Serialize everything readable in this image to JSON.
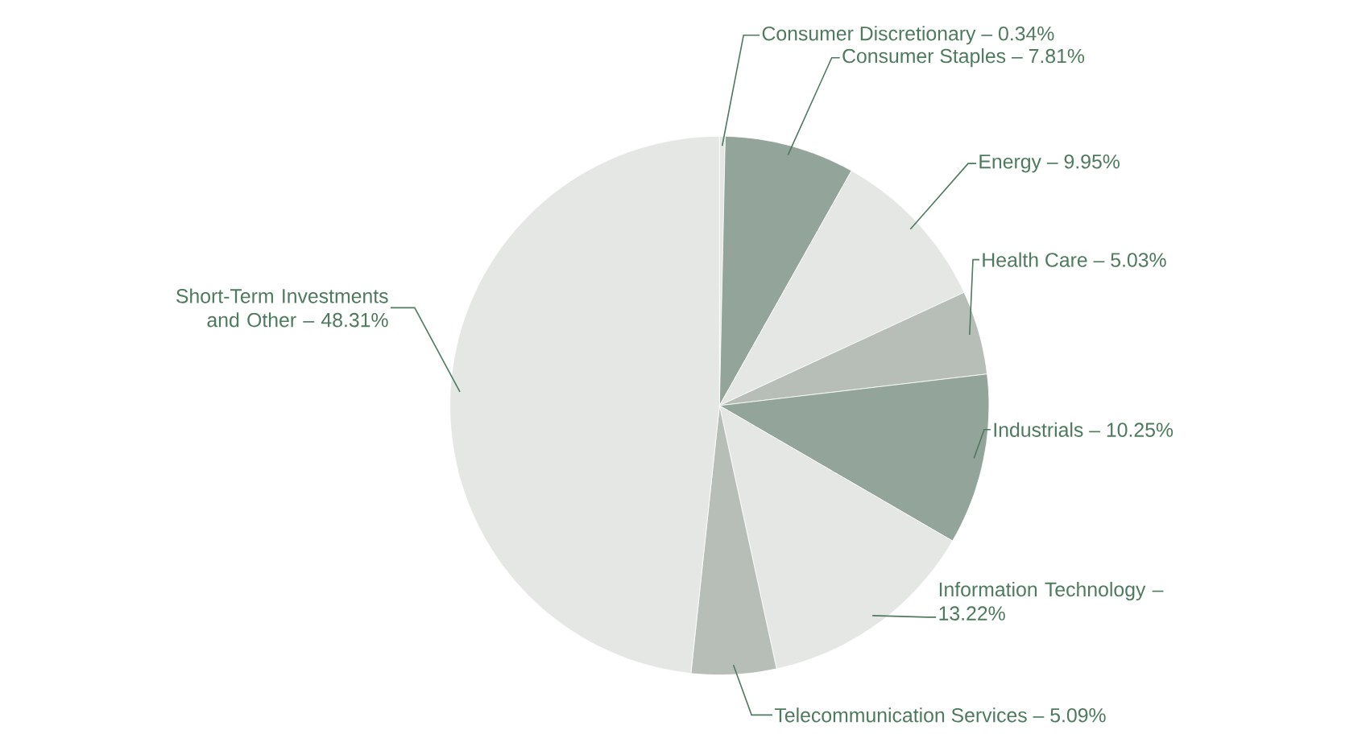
{
  "chart_data": {
    "type": "pie",
    "categories": [
      "Consumer Discretionary – 0.34%",
      "Consumer Staples – 7.81%",
      "Energy – 9.95%",
      "Health Care – 5.03%",
      "Industrials – 10.25%",
      "Information Technology – 13.22%",
      "Telecommunication Services – 5.09%",
      "Short-Term Investments and Other – 48.31%"
    ],
    "values": [
      0.34,
      7.81,
      9.95,
      5.03,
      10.25,
      13.22,
      5.09,
      48.31
    ],
    "colors": [
      "#e4e7e4",
      "#93a49a",
      "#e4e7e4",
      "#b7beb8",
      "#93a49a",
      "#e4e7e4",
      "#b7beb8",
      "#e4e7e4"
    ]
  }
}
